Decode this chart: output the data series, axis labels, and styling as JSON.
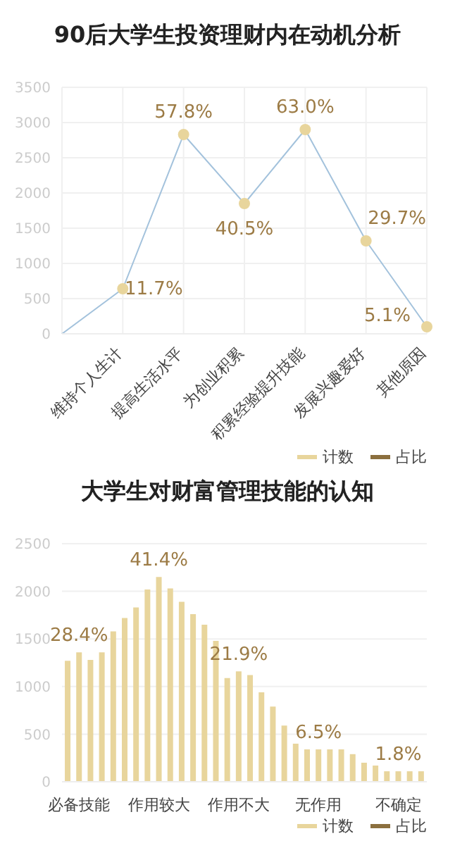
{
  "chart_data": [
    {
      "type": "line",
      "title": "90后大学生投资理财内在动机分析",
      "categories": [
        null,
        "维持个人生计",
        "提高生活水平",
        "为创业积累",
        "积累经验提升技能",
        "发展兴趣爱好",
        "其他原因"
      ],
      "series": [
        {
          "name": "计数",
          "type": "line",
          "color": "#a3c2dc",
          "colors": [
            null,
            "#e8d59c",
            "#e8d59c",
            "#e8d59c",
            "#e8d59c",
            "#e8d59c",
            "#e8d59c"
          ],
          "values": [
            0,
            640,
            2830,
            1850,
            2900,
            1320,
            100
          ]
        },
        {
          "name": "占比",
          "type": "line",
          "color": "#8b6f3e",
          "values": [
            null,
            null,
            null,
            null,
            null,
            null,
            null
          ]
        }
      ],
      "annotations": [
        {
          "text": "11.7%",
          "x": "维持个人生计",
          "y": 640
        },
        {
          "text": "57.8%",
          "x": "提高生活水平",
          "y": 2830
        },
        {
          "text": "40.5%",
          "x": "为创业积累",
          "y": 1850
        },
        {
          "text": "63.0%",
          "x": "积累经验提升技能",
          "y": 2900
        },
        {
          "text": "29.7%",
          "x": "发展兴趣爱好",
          "y": 1320
        },
        {
          "text": "5.1%",
          "x": "其他原因",
          "y": 100
        }
      ],
      "ylim": [
        0,
        3500
      ],
      "yticks": [
        0,
        500,
        1000,
        1500,
        2000,
        2500,
        3000,
        3500
      ],
      "grid": true,
      "legend": "bottom right",
      "marker": "circle"
    },
    {
      "type": "bar",
      "title": "大学生对财富管理技能的认知",
      "categories": [
        null,
        "必备技能",
        null,
        null,
        null,
        null,
        null,
        null,
        "作用较大",
        null,
        null,
        null,
        null,
        null,
        null,
        "作用不大",
        null,
        null,
        null,
        null,
        null,
        null,
        "无作用",
        null,
        null,
        null,
        null,
        null,
        null,
        "不确定",
        null,
        null
      ],
      "series": [
        {
          "name": "计数",
          "type": "bar",
          "color": "#e8d59c",
          "values": [
            1270,
            1360,
            1280,
            1360,
            1580,
            1720,
            1830,
            2020,
            2150,
            2030,
            1890,
            1760,
            1650,
            1480,
            1090,
            1160,
            1120,
            940,
            790,
            590,
            400,
            340,
            340,
            340,
            340,
            290,
            200,
            170,
            110,
            110,
            110,
            110
          ]
        },
        {
          "name": "占比",
          "type": "line",
          "color": "#8b6f3e",
          "values": [
            null,
            null,
            null,
            null,
            null,
            null,
            null,
            null,
            null,
            null,
            null,
            null,
            null,
            null,
            null,
            null,
            null,
            null,
            null,
            null,
            null,
            null,
            null,
            null,
            null,
            null,
            null,
            null,
            null,
            null,
            null,
            null
          ]
        }
      ],
      "annotations": [
        {
          "text": "28.4%",
          "x": "必备技能",
          "y": 1360
        },
        {
          "text": "41.4%",
          "x": "作用较大",
          "y": 2150
        },
        {
          "text": "21.9%",
          "x": "作用不大",
          "y": 1160
        },
        {
          "text": "6.5%",
          "x": "无作用",
          "y": 340
        },
        {
          "text": "1.8%",
          "x": "不确定",
          "y": 110
        }
      ],
      "ylim": [
        0,
        2500
      ],
      "yticks": [
        0,
        500,
        1000,
        1500,
        2000,
        2500
      ],
      "grid": "y",
      "legend": "bottom right"
    }
  ]
}
